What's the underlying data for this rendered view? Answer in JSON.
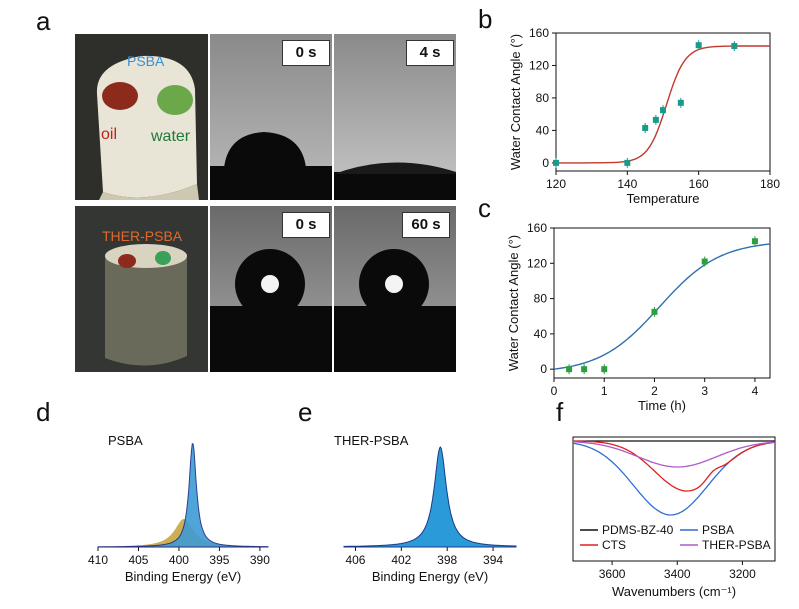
{
  "panel_a": {
    "label": "a",
    "top_sample": {
      "name": "PSBA",
      "oil": "oil",
      "water": "water"
    },
    "bottom_sample": {
      "name": "THER-PSBA"
    },
    "time_top": [
      "0 s",
      "4 s"
    ],
    "time_bottom": [
      "0 s",
      "60 s"
    ]
  },
  "chart_data": [
    {
      "id": "b",
      "label": "b",
      "type": "scatter",
      "xlabel": "Temperature",
      "ylabel": "Water Contact Angle (°)",
      "xlim": [
        120,
        180
      ],
      "ylim": [
        -10,
        160
      ],
      "xticks": [
        120,
        140,
        160,
        180
      ],
      "yticks": [
        0,
        40,
        80,
        120,
        160
      ],
      "x": [
        120,
        140,
        145,
        148,
        150,
        155,
        160,
        170
      ],
      "y": [
        0,
        0,
        43,
        53,
        65,
        74,
        145,
        144
      ],
      "fit": "sigmoid",
      "point_color": "#1a9a8a",
      "line_color": "#c0392b"
    },
    {
      "id": "c",
      "label": "c",
      "type": "scatter",
      "xlabel": "Time (h)",
      "ylabel": "Water Contact Angle (°)",
      "xlim": [
        0,
        4.3
      ],
      "ylim": [
        -10,
        160
      ],
      "xticks": [
        0,
        1,
        2,
        3,
        4
      ],
      "yticks": [
        0,
        40,
        80,
        120,
        160
      ],
      "x": [
        0.3,
        0.6,
        1,
        2,
        3,
        4
      ],
      "y": [
        0,
        0,
        0,
        65,
        122,
        145
      ],
      "fit": "sigmoid",
      "point_color": "#2e9e3e",
      "line_color": "#2f6fb0"
    },
    {
      "id": "d",
      "label": "d",
      "type": "line",
      "legend": "PSBA",
      "xlabel": "Binding Energy (eV)",
      "xlim": [
        410,
        389
      ],
      "xticks": [
        410,
        405,
        400,
        395,
        390
      ],
      "peaks_eV": [
        398.3,
        399.4
      ],
      "fill_color": "#3d9bd4",
      "fill_color2": "#c8a640",
      "line_color": "#1b2a8a"
    },
    {
      "id": "e",
      "label": "e",
      "type": "area",
      "legend": "THER-PSBA",
      "xlabel": "Binding Energy (eV)",
      "xlim": [
        407,
        392
      ],
      "xticks": [
        406,
        402,
        398,
        394
      ],
      "peaks_eV": [
        398.6
      ],
      "fill_color": "#2b9ad8"
    },
    {
      "id": "f",
      "label": "f",
      "type": "line",
      "xlabel": "Wavenumbers (cm⁻¹)",
      "xlim": [
        3720,
        3100
      ],
      "xticks": [
        3600,
        3400,
        3200
      ],
      "series": [
        {
          "name": "PDMS-BZ-40",
          "color": "#111111"
        },
        {
          "name": "PSBA",
          "color": "#2f6fd0"
        },
        {
          "name": "CTS",
          "color": "#e02020"
        },
        {
          "name": "THER-PSBA",
          "color": "#b05ac8"
        }
      ]
    }
  ]
}
